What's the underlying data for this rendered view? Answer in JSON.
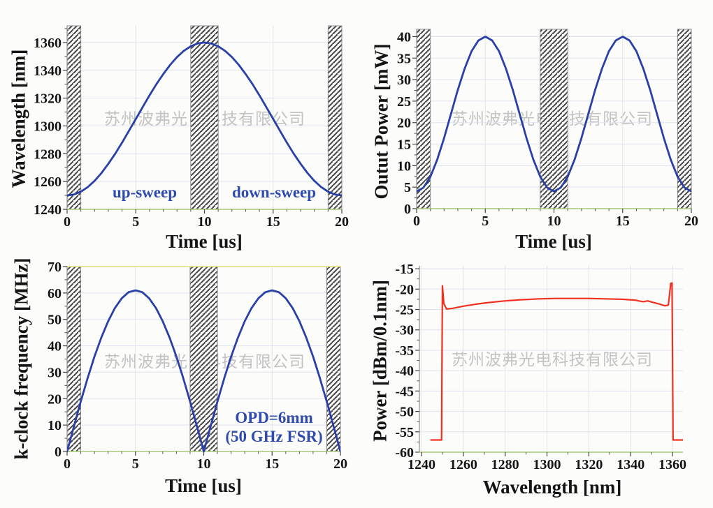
{
  "figure": {
    "watermark_text": "苏州波弗光电科技有限公司",
    "watermark_color": "#c3c3c3",
    "background": "#fcfcfa",
    "hatch_line_color": "#4c4c4c",
    "x_axis_color": "#a9c878",
    "y_axis_color": "#8f8f8f",
    "tick_label_color": "#141414"
  },
  "chart_data": [
    {
      "id": "wavelength-vs-time",
      "type": "line",
      "title": "",
      "xlabel": "Time [us]",
      "ylabel": "Wavelength [nm]",
      "xlim": [
        0,
        20
      ],
      "ylim": [
        1240,
        1372
      ],
      "xticks": [
        0,
        5,
        10,
        15,
        20
      ],
      "yticks": [
        1240,
        1260,
        1280,
        1300,
        1320,
        1340,
        1360
      ],
      "x_minor_step": 1,
      "y_minor_step": 10,
      "grid": true,
      "legend": "none",
      "line_color": "#2a40a8",
      "hatch_regions": [
        [
          0,
          1
        ],
        [
          9,
          11
        ],
        [
          19,
          20
        ]
      ],
      "annotations": [
        {
          "text": "up-sweep",
          "color": "#2f4bae"
        },
        {
          "text": "down-sweep",
          "color": "#2f4bae"
        }
      ],
      "series": [
        {
          "name": "wavelength",
          "x": [
            0,
            0.5,
            1,
            1.5,
            2,
            2.5,
            3,
            3.5,
            4,
            4.5,
            5,
            5.5,
            6,
            6.5,
            7,
            7.5,
            8,
            8.5,
            9,
            9.5,
            10,
            10.5,
            11,
            11.5,
            12,
            12.5,
            13,
            13.5,
            14,
            14.5,
            15,
            15.5,
            16,
            16.5,
            17,
            17.5,
            18,
            18.5,
            19,
            19.5,
            20
          ],
          "y": [
            1250,
            1250.7,
            1252.7,
            1256,
            1260.5,
            1266.1,
            1272.7,
            1280,
            1288,
            1296.4,
            1305,
            1313.6,
            1322,
            1330,
            1337.3,
            1343.9,
            1349.5,
            1354,
            1357.3,
            1359.3,
            1360,
            1359.3,
            1357.3,
            1354,
            1349.5,
            1343.9,
            1337.3,
            1330,
            1322,
            1313.6,
            1305,
            1296.4,
            1288,
            1280,
            1272.7,
            1266.1,
            1260.5,
            1256,
            1252.7,
            1250.7,
            1250
          ]
        }
      ]
    },
    {
      "id": "output-power-vs-time",
      "type": "line",
      "title": "",
      "xlabel": "Time [us]",
      "ylabel": "Outut Power [mW]",
      "xlim": [
        0,
        20
      ],
      "ylim": [
        0,
        41.7
      ],
      "xticks": [
        0,
        5,
        10,
        15,
        20
      ],
      "yticks": [
        0,
        5,
        10,
        15,
        20,
        25,
        30,
        35,
        40
      ],
      "x_minor_step": 1,
      "y_minor_step": 2.5,
      "grid": true,
      "legend": "none",
      "line_color": "#2a40a8",
      "hatch_regions": [
        [
          0,
          1
        ],
        [
          9,
          11
        ],
        [
          19,
          20
        ]
      ],
      "annotations": [],
      "series": [
        {
          "name": "output-power",
          "x": [
            0,
            0.5,
            1,
            1.5,
            2,
            2.5,
            3,
            3.5,
            4,
            4.5,
            5,
            5.5,
            6,
            6.5,
            7,
            7.5,
            8,
            8.5,
            9,
            9.5,
            10,
            10.5,
            11,
            11.5,
            12,
            12.5,
            13,
            13.5,
            14,
            14.5,
            15,
            15.5,
            16,
            16.5,
            17,
            17.5,
            18,
            18.5,
            19,
            19.5,
            20
          ],
          "y": [
            4,
            4.9,
            7.4,
            11.4,
            16.4,
            22,
            27.6,
            32.6,
            36.6,
            39.1,
            40,
            39.1,
            36.6,
            32.6,
            27.6,
            22,
            16.4,
            11.4,
            7.4,
            4.9,
            4,
            4.9,
            7.4,
            11.4,
            16.4,
            22,
            27.6,
            32.6,
            36.6,
            39.1,
            40,
            39.1,
            36.6,
            32.6,
            27.6,
            22,
            16.4,
            11.4,
            7.4,
            4.9,
            4
          ]
        }
      ]
    },
    {
      "id": "kclock-frequency-vs-time",
      "type": "line",
      "title": "",
      "xlabel": "Time [us]",
      "ylabel": "k-clock frequency [MHz]",
      "xlim": [
        0,
        20
      ],
      "ylim": [
        0,
        70
      ],
      "xticks": [
        0,
        5,
        10,
        15,
        20
      ],
      "yticks": [
        0,
        10,
        20,
        30,
        40,
        50,
        60,
        70
      ],
      "x_minor_step": 1,
      "y_minor_step": 5,
      "grid": true,
      "legend": "none",
      "line_color": "#2a40a8",
      "top_border_color": "#e2de6b",
      "hatch_regions": [
        [
          0,
          1
        ],
        [
          9,
          11
        ],
        [
          19,
          20
        ]
      ],
      "annotations": [
        {
          "text": "OPD=6mm",
          "color": "#2f4bae"
        },
        {
          "text": "(50 GHz FSR)",
          "color": "#2f4bae"
        }
      ],
      "series": [
        {
          "name": "k-clock-frequency",
          "x": [
            0,
            0.5,
            1,
            1.5,
            2,
            2.5,
            3,
            3.5,
            4,
            4.5,
            5,
            5.5,
            6,
            6.5,
            7,
            7.5,
            8,
            8.5,
            9,
            9.5,
            10,
            10.5,
            11,
            11.5,
            12,
            12.5,
            13,
            13.5,
            14,
            14.5,
            15,
            15.5,
            16,
            16.5,
            17,
            17.5,
            18,
            18.5,
            19,
            19.5,
            20
          ],
          "y": [
            0,
            9.5,
            18.9,
            27.7,
            35.9,
            43.1,
            49.3,
            54.3,
            58,
            60.3,
            61,
            60.3,
            58,
            54.3,
            49.3,
            43.1,
            35.9,
            27.7,
            18.9,
            9.5,
            0,
            9.5,
            18.9,
            27.7,
            35.9,
            43.1,
            49.3,
            54.3,
            58,
            60.3,
            61,
            60.3,
            58,
            54.3,
            49.3,
            43.1,
            35.9,
            27.7,
            18.9,
            9.5,
            0
          ]
        }
      ]
    },
    {
      "id": "output-spectrum",
      "type": "line",
      "title": "",
      "xlabel": "Wavelength [nm]",
      "ylabel": "Power [dBm/0.1nm]",
      "xlim": [
        1239,
        1365
      ],
      "ylim": [
        -60,
        -14.3
      ],
      "xticks": [
        1240,
        1260,
        1280,
        1300,
        1320,
        1340,
        1360
      ],
      "yticks": [
        -15,
        -20,
        -25,
        -30,
        -35,
        -40,
        -45,
        -50,
        -55,
        -60
      ],
      "x_minor_step": 10,
      "y_minor_step": 2.5,
      "grid": true,
      "legend": "none",
      "line_color": "#f03120",
      "hatch_regions": [],
      "annotations": [],
      "series": [
        {
          "name": "spectrum",
          "x": [
            1244.5,
            1249.6,
            1250,
            1250.7,
            1252,
            1255,
            1260,
            1266,
            1272,
            1280,
            1288,
            1296,
            1304,
            1312,
            1320,
            1328,
            1336,
            1342,
            1346,
            1348,
            1351,
            1354,
            1356.5,
            1358,
            1359.2,
            1359.8,
            1360.3,
            1361,
            1365
          ],
          "y": [
            -57,
            -57,
            -19.2,
            -23.6,
            -24.9,
            -24.7,
            -24.2,
            -23.7,
            -23.3,
            -22.9,
            -22.6,
            -22.4,
            -22.3,
            -22.3,
            -22.3,
            -22.4,
            -22.5,
            -22.7,
            -23.1,
            -22.9,
            -23.3,
            -23.7,
            -24.1,
            -23.9,
            -18.6,
            -18.5,
            -57,
            -57,
            -57
          ]
        }
      ]
    }
  ]
}
